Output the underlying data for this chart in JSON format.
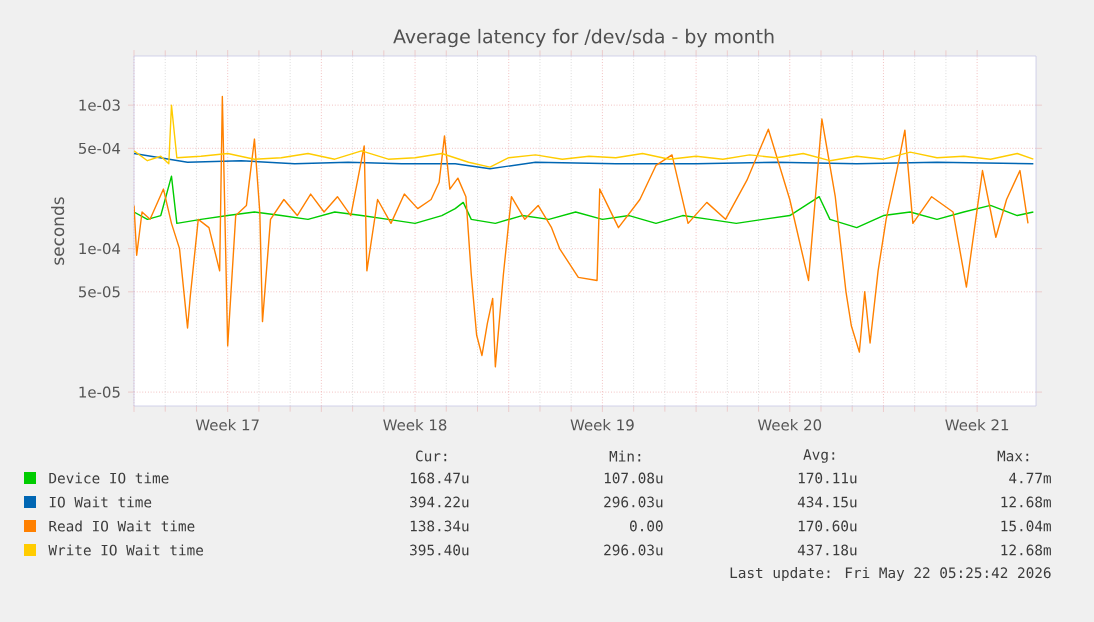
{
  "chart_data": {
    "type": "line",
    "title": "Average latency for /dev/sda - by month",
    "ylabel": "seconds",
    "log": true,
    "grid": true,
    "legend": "bottom",
    "marker": "none",
    "line_style": "solid",
    "xlim": [
      "2026-04-20",
      "2026-05-23T16:48"
    ],
    "ylim": [
      8e-06,
      0.0022
    ],
    "xticks": [
      {
        "value": "2026-04-20",
        "label": null
      },
      {
        "value": "2026-04-23T12:00",
        "label": "Week 17"
      },
      {
        "value": "2026-04-27",
        "label": null
      },
      {
        "value": "2026-04-30T12:00",
        "label": "Week 18"
      },
      {
        "value": "2026-05-04",
        "label": null
      },
      {
        "value": "2026-05-07T12:00",
        "label": "Week 19"
      },
      {
        "value": "2026-05-11",
        "label": null
      },
      {
        "value": "2026-05-14T12:00",
        "label": "Week 20"
      },
      {
        "value": "2026-05-18",
        "label": null
      },
      {
        "value": "2026-05-21T12:00",
        "label": "Week 21"
      }
    ],
    "yticks": [
      {
        "value": 1e-05,
        "label": "1e-05"
      },
      {
        "value": 5e-05,
        "label": "5e-05"
      },
      {
        "value": 0.0001,
        "label": "1e-04"
      },
      {
        "value": 0.0005,
        "label": "5e-04"
      },
      {
        "value": 0.001,
        "label": "1e-03"
      }
    ],
    "series": [
      {
        "name": "Device IO time",
        "color": "#00cc00",
        "x": [
          "2026-04-20T00:00",
          "2026-04-20T12:00",
          "2026-04-21T00:00",
          "2026-04-21T09:36",
          "2026-04-21T14:24",
          "2026-04-22T12:00",
          "2026-04-23T12:00",
          "2026-04-24T12:00",
          "2026-04-25T12:00",
          "2026-04-26T12:00",
          "2026-04-27T12:00",
          "2026-04-28T12:00",
          "2026-04-29T12:00",
          "2026-04-30T12:00",
          "2026-05-01T12:00",
          "2026-05-02T00:00",
          "2026-05-02T07:12",
          "2026-05-02T14:24",
          "2026-05-03T12:00",
          "2026-05-04T12:00",
          "2026-05-05T12:00",
          "2026-05-06T12:00",
          "2026-05-07T12:00",
          "2026-05-08T12:00",
          "2026-05-09T12:00",
          "2026-05-10T12:00",
          "2026-05-11T12:00",
          "2026-05-12T12:00",
          "2026-05-13T12:00",
          "2026-05-14T12:00",
          "2026-05-15T14:24",
          "2026-05-16T00:00",
          "2026-05-17T00:00",
          "2026-05-18T00:00",
          "2026-05-19T00:00",
          "2026-05-20T00:00",
          "2026-05-21T00:00",
          "2026-05-22T00:00",
          "2026-05-23T00:00",
          "2026-05-23T14:24"
        ],
        "values": [
          0.00018,
          0.00016,
          0.00017,
          0.00032,
          0.00015,
          0.00016,
          0.00017,
          0.00018,
          0.00017,
          0.00016,
          0.00018,
          0.00017,
          0.00016,
          0.00015,
          0.00017,
          0.00019,
          0.00021,
          0.00016,
          0.00015,
          0.00017,
          0.00016,
          0.00018,
          0.00016,
          0.00017,
          0.00015,
          0.00017,
          0.00016,
          0.00015,
          0.00016,
          0.00017,
          0.00023,
          0.00016,
          0.00014,
          0.00017,
          0.00018,
          0.00016,
          0.00018,
          0.0002,
          0.00017,
          0.00018
        ]
      },
      {
        "name": "IO Wait time",
        "color": "#0066b3",
        "x": [
          "2026-04-20T00:00",
          "2026-04-22T00:00",
          "2026-04-24T00:00",
          "2026-04-26T00:00",
          "2026-04-28T00:00",
          "2026-04-30T00:00",
          "2026-05-02T00:00",
          "2026-05-03T07:12",
          "2026-05-05T00:00",
          "2026-05-08T00:00",
          "2026-05-11T00:00",
          "2026-05-14T00:00",
          "2026-05-17T00:00",
          "2026-05-20T00:00",
          "2026-05-23T14:24"
        ],
        "values": [
          0.00046,
          0.0004,
          0.00041,
          0.00039,
          0.0004,
          0.00039,
          0.00039,
          0.00036,
          0.0004,
          0.00039,
          0.00039,
          0.0004,
          0.00039,
          0.0004,
          0.00039
        ]
      },
      {
        "name": "Read IO Wait time",
        "color": "#ff8000",
        "x": [
          "2026-04-20T00:00",
          "2026-04-20T02:24",
          "2026-04-20T07:12",
          "2026-04-20T14:24",
          "2026-04-21T02:24",
          "2026-04-21T09:36",
          "2026-04-21T16:48",
          "2026-04-22T00:00",
          "2026-04-22T02:24",
          "2026-04-22T09:36",
          "2026-04-22T19:12",
          "2026-04-23T04:48",
          "2026-04-23T07:12",
          "2026-04-23T12:00",
          "2026-04-23T19:12",
          "2026-04-24T04:48",
          "2026-04-24T12:00",
          "2026-04-24T16:48",
          "2026-04-24T19:12",
          "2026-04-25T02:24",
          "2026-04-25T14:24",
          "2026-04-26T02:24",
          "2026-04-26T14:24",
          "2026-04-27T02:24",
          "2026-04-27T14:24",
          "2026-04-28T02:24",
          "2026-04-28T14:24",
          "2026-04-28T16:48",
          "2026-04-29T02:24",
          "2026-04-29T14:24",
          "2026-04-30T02:24",
          "2026-04-30T14:24",
          "2026-05-01T02:24",
          "2026-05-01T09:36",
          "2026-05-01T14:24",
          "2026-05-01T19:12",
          "2026-05-02T02:24",
          "2026-05-02T09:36",
          "2026-05-02T14:24",
          "2026-05-02T19:12",
          "2026-05-03T00:00",
          "2026-05-03T04:48",
          "2026-05-03T09:36",
          "2026-05-03T12:00",
          "2026-05-03T19:12",
          "2026-05-04T02:24",
          "2026-05-04T14:24",
          "2026-05-05T02:24",
          "2026-05-05T14:24",
          "2026-05-05T21:36",
          "2026-05-06T14:24",
          "2026-05-07T07:12",
          "2026-05-07T09:36",
          "2026-05-08T02:24",
          "2026-05-08T21:36",
          "2026-05-09T12:00",
          "2026-05-10T02:24",
          "2026-05-10T16:48",
          "2026-05-11T09:36",
          "2026-05-12T02:24",
          "2026-05-12T21:36",
          "2026-05-13T16:48",
          "2026-05-14T12:00",
          "2026-05-15T04:48",
          "2026-05-15T16:48",
          "2026-05-16T04:48",
          "2026-05-16T14:24",
          "2026-05-16T19:12",
          "2026-05-17T02:24",
          "2026-05-17T07:12",
          "2026-05-17T12:00",
          "2026-05-17T19:12",
          "2026-05-18T02:24",
          "2026-05-18T12:00",
          "2026-05-18T19:12",
          "2026-05-19T02:24",
          "2026-05-19T19:12",
          "2026-05-20T14:24",
          "2026-05-21T02:24",
          "2026-05-21T16:48",
          "2026-05-22T04:48",
          "2026-05-22T14:24",
          "2026-05-23T02:24",
          "2026-05-23T09:36"
        ],
        "values": [
          0.0002,
          9e-05,
          0.00018,
          0.00016,
          0.00026,
          0.00015,
          0.0001,
          2.8e-05,
          4.6e-05,
          0.00016,
          0.00014,
          7e-05,
          0.00115,
          2.1e-05,
          0.00017,
          0.0002,
          0.00058,
          0.00018,
          3.1e-05,
          0.00016,
          0.00022,
          0.00017,
          0.00024,
          0.00018,
          0.00023,
          0.00017,
          0.00052,
          7e-05,
          0.00022,
          0.00015,
          0.00024,
          0.00019,
          0.00022,
          0.00029,
          0.00061,
          0.00026,
          0.00031,
          0.00023,
          6.6e-05,
          2.5e-05,
          1.8e-05,
          3e-05,
          4.5e-05,
          1.5e-05,
          6.6e-05,
          0.00023,
          0.00016,
          0.0002,
          0.00014,
          0.0001,
          6.3e-05,
          6e-05,
          0.00026,
          0.00014,
          0.00022,
          0.00038,
          0.00045,
          0.00015,
          0.00021,
          0.00016,
          0.0003,
          0.00068,
          0.00022,
          6e-05,
          0.0008,
          0.00023,
          5e-05,
          2.9e-05,
          1.9e-05,
          5e-05,
          2.2e-05,
          7e-05,
          0.00016,
          0.00035,
          0.00067,
          0.00015,
          0.00023,
          0.00018,
          5.4e-05,
          0.00035,
          0.00012,
          0.00022,
          0.00035,
          0.00015
        ]
      },
      {
        "name": "Write IO Wait time",
        "color": "#ffcc00",
        "x": [
          "2026-04-20T00:00",
          "2026-04-20T12:00",
          "2026-04-21T00:00",
          "2026-04-21T07:12",
          "2026-04-21T09:36",
          "2026-04-21T14:24",
          "2026-04-22T12:00",
          "2026-04-23T12:00",
          "2026-04-24T12:00",
          "2026-04-25T12:00",
          "2026-04-26T12:00",
          "2026-04-27T12:00",
          "2026-04-28T12:00",
          "2026-04-29T12:00",
          "2026-04-30T12:00",
          "2026-05-01T12:00",
          "2026-05-02T12:00",
          "2026-05-03T07:12",
          "2026-05-04T00:00",
          "2026-05-05T00:00",
          "2026-05-06T00:00",
          "2026-05-07T00:00",
          "2026-05-08T00:00",
          "2026-05-09T00:00",
          "2026-05-10T00:00",
          "2026-05-11T00:00",
          "2026-05-12T00:00",
          "2026-05-13T00:00",
          "2026-05-14T00:00",
          "2026-05-15T00:00",
          "2026-05-16T00:00",
          "2026-05-17T00:00",
          "2026-05-18T00:00",
          "2026-05-19T00:00",
          "2026-05-20T00:00",
          "2026-05-21T00:00",
          "2026-05-22T00:00",
          "2026-05-23T00:00",
          "2026-05-23T14:24"
        ],
        "values": [
          0.00048,
          0.00041,
          0.00044,
          0.00039,
          0.001,
          0.00043,
          0.00044,
          0.00046,
          0.00042,
          0.00043,
          0.00046,
          0.00042,
          0.00048,
          0.00042,
          0.00043,
          0.00046,
          0.0004,
          0.00037,
          0.00043,
          0.00045,
          0.00042,
          0.00044,
          0.00043,
          0.00046,
          0.00042,
          0.00044,
          0.00042,
          0.00045,
          0.00043,
          0.00046,
          0.00041,
          0.00044,
          0.00042,
          0.00047,
          0.00043,
          0.00044,
          0.00042,
          0.00046,
          0.00042
        ]
      }
    ],
    "annotations": [
      "Cur:",
      "Min:",
      "Avg:",
      "Max:",
      "168.47u",
      "107.08u",
      "170.11u",
      "4.77m",
      "394.22u",
      "296.03u",
      "434.15u",
      "12.68m",
      "138.34u",
      "0.00",
      "170.60u",
      "15.04m",
      "395.40u",
      "296.03u",
      "437.18u",
      "12.68m",
      "Last update: Fri May 22 05:25:42 2026"
    ]
  }
}
